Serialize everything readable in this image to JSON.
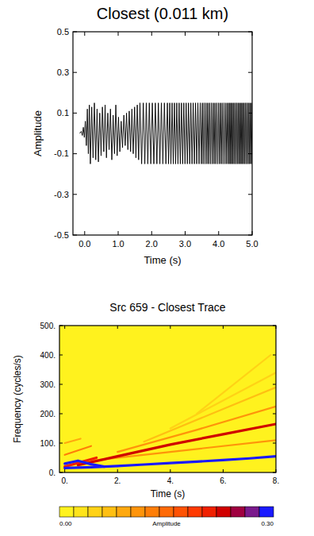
{
  "chart_data": [
    {
      "type": "line",
      "title": "Closest (0.011 km)",
      "x_label": "Time (s)",
      "y_label": "Amplitude",
      "color": "#000000",
      "xlim": [
        -0.35,
        5.0
      ],
      "ylim": [
        -0.5,
        0.5
      ],
      "xticks": [
        {
          "value": 0,
          "label": "0.0"
        },
        {
          "value": 1,
          "label": "1.0"
        },
        {
          "value": 2,
          "label": "2.0"
        },
        {
          "value": 3,
          "label": "3.0"
        },
        {
          "value": 4,
          "label": "4.0"
        },
        {
          "value": 5,
          "label": "5.0"
        }
      ],
      "yticks": [
        -0.5,
        -0.3,
        -0.1,
        0.1,
        0.3,
        0.5
      ],
      "x": [
        -0.15,
        -0.1,
        -0.07,
        -0.04,
        -0.01,
        0.02,
        0.05,
        0.08,
        0.11,
        0.14,
        0.17,
        0.21,
        0.25,
        0.29,
        0.33,
        0.37,
        0.41,
        0.45,
        0.49,
        0.53,
        0.57,
        0.61,
        0.65,
        0.69,
        0.73,
        0.77,
        0.81,
        0.85,
        0.89,
        0.93,
        0.97,
        1.01,
        1.05,
        1.09,
        1.13,
        1.17,
        1.21,
        1.25,
        1.29,
        1.33,
        1.37,
        1.41,
        1.45,
        1.49,
        1.53,
        1.57,
        1.61,
        1.65,
        1.7,
        1.75,
        1.795,
        1.84,
        1.885,
        1.93,
        1.975,
        2.02,
        2.065,
        2.11,
        2.155,
        2.2,
        2.245,
        2.29,
        2.335,
        2.38,
        2.425,
        2.47,
        2.505,
        2.54,
        2.575,
        2.61,
        2.645,
        2.68,
        2.715,
        2.75,
        2.785,
        2.82,
        2.855,
        2.89,
        2.925,
        2.96,
        2.995,
        3.03,
        3.065,
        3.1,
        3.135,
        3.17,
        3.205,
        3.24,
        3.275,
        3.31,
        3.345,
        3.38,
        3.415,
        3.45,
        3.485,
        3.512,
        3.539,
        3.566,
        3.593,
        3.62,
        3.647,
        3.674,
        3.701,
        3.728,
        3.755,
        3.782,
        3.809,
        3.836,
        3.863,
        3.89,
        3.917,
        3.944,
        3.971,
        3.998,
        4.025,
        4.052,
        4.079,
        4.106,
        4.133,
        4.16,
        4.187,
        4.214,
        4.241,
        4.268,
        4.295,
        4.317,
        4.339,
        4.361,
        4.383,
        4.405,
        4.427,
        4.449,
        4.471,
        4.493,
        4.515,
        4.537,
        4.559,
        4.581,
        4.603,
        4.625,
        4.647,
        4.669,
        4.691,
        4.713,
        4.735,
        4.757,
        4.779,
        4.801,
        4.823,
        4.845,
        4.867,
        4.889,
        4.911,
        4.933,
        4.955,
        4.977,
        4.999
      ],
      "values": [
        0.0,
        0.01,
        -0.01,
        0.03,
        -0.02,
        0.06,
        -0.06,
        0.12,
        -0.1,
        0.14,
        -0.15,
        0.13,
        -0.12,
        0.15,
        -0.13,
        0.12,
        -0.14,
        0.1,
        -0.11,
        0.13,
        -0.09,
        0.14,
        -0.12,
        0.1,
        -0.08,
        0.12,
        -0.13,
        0.09,
        -0.1,
        0.14,
        -0.11,
        0.08,
        -0.09,
        0.06,
        -0.07,
        0.09,
        -0.06,
        0.1,
        -0.08,
        0.11,
        -0.09,
        0.12,
        -0.1,
        0.13,
        -0.12,
        0.14,
        -0.13,
        0.15,
        -0.15,
        0.15,
        -0.15,
        0.15,
        -0.15,
        0.15,
        -0.15,
        0.15,
        -0.15,
        0.15,
        -0.15,
        0.15,
        -0.15,
        0.15,
        -0.15,
        0.15,
        -0.15,
        0.15,
        -0.15,
        0.15,
        -0.15,
        0.15,
        -0.15,
        0.15,
        -0.15,
        0.15,
        -0.15,
        0.15,
        -0.15,
        0.15,
        -0.15,
        0.15,
        -0.15,
        0.15,
        -0.15,
        0.15,
        -0.15,
        0.15,
        -0.15,
        0.15,
        -0.15,
        0.15,
        -0.15,
        0.15,
        -0.15,
        0.15,
        -0.15,
        0.15,
        -0.15,
        0.15,
        -0.15,
        0.15,
        -0.15,
        0.15,
        -0.15,
        0.15,
        -0.15,
        0.15,
        -0.15,
        0.15,
        -0.15,
        0.15,
        -0.15,
        0.15,
        -0.15,
        0.15,
        -0.15,
        0.15,
        -0.15,
        0.15,
        -0.15,
        0.15,
        -0.15,
        0.15,
        -0.15,
        0.15,
        -0.15,
        0.15,
        -0.15,
        0.15,
        -0.15,
        0.15,
        -0.15,
        0.15,
        -0.15,
        0.15,
        -0.15,
        0.15,
        -0.15,
        0.15,
        -0.15,
        0.15,
        -0.15,
        0.15,
        -0.15,
        0.15,
        -0.15,
        0.15,
        -0.15,
        0.15,
        -0.15,
        0.15,
        -0.15,
        0.15,
        -0.15,
        0.15,
        -0.15,
        0.15,
        -0.15
      ]
    },
    {
      "type": "spectrogram",
      "title": "Src 659 - Closest Trace",
      "x_label": "Time (s)",
      "y_label": "Frequency (cycles/s)",
      "xlim": [
        -0.2,
        8.0
      ],
      "ylim": [
        0,
        500
      ],
      "xticks": [
        {
          "value": 0,
          "label": "0."
        },
        {
          "value": 2,
          "label": "2."
        },
        {
          "value": 4,
          "label": "4."
        },
        {
          "value": 6,
          "label": "6."
        },
        {
          "value": 8,
          "label": "8."
        }
      ],
      "yticks": [
        {
          "value": 0,
          "label": "0."
        },
        {
          "value": 100,
          "label": "100."
        },
        {
          "value": 200,
          "label": "200."
        },
        {
          "value": 300,
          "label": "300."
        },
        {
          "value": 400,
          "label": "400."
        },
        {
          "value": 500,
          "label": "500."
        }
      ],
      "ridges": [
        {
          "x": [
            0,
            1,
            2,
            3,
            4,
            5,
            6,
            7,
            8
          ],
          "y": [
            15,
            18,
            22,
            27,
            32,
            37,
            42,
            48,
            55
          ],
          "amplitude": 0.3
        },
        {
          "x": [
            0.5,
            2,
            4,
            6,
            8
          ],
          "y": [
            25,
            55,
            95,
            130,
            165
          ],
          "amplitude": 0.22
        },
        {
          "x": [
            1,
            4,
            8
          ],
          "y": [
            40,
            70,
            110
          ],
          "amplitude": 0.1
        },
        {
          "x": [
            2,
            5,
            8
          ],
          "y": [
            70,
            145,
            225
          ],
          "amplitude": 0.1
        },
        {
          "x": [
            3,
            8
          ],
          "y": [
            105,
            290
          ],
          "amplitude": 0.06
        },
        {
          "x": [
            4,
            8
          ],
          "y": [
            150,
            340
          ],
          "amplitude": 0.05
        },
        {
          "x": [
            5,
            7.8
          ],
          "y": [
            200,
            400
          ],
          "amplitude": 0.04
        },
        {
          "x": [
            0,
            0.5,
            1,
            1.5
          ],
          "y": [
            30,
            40,
            28,
            20
          ],
          "amplitude": 0.28
        },
        {
          "x": [
            0,
            0.6,
            1.2
          ],
          "y": [
            20,
            35,
            50
          ],
          "amplitude": 0.2
        },
        {
          "x": [
            0,
            0.5,
            1
          ],
          "y": [
            60,
            75,
            90
          ],
          "amplitude": 0.12
        },
        {
          "x": [
            0,
            0.6
          ],
          "y": [
            100,
            115
          ],
          "amplitude": 0.08
        }
      ],
      "colorbar": {
        "label": "Amplitude",
        "range": [
          0,
          0.3
        ],
        "ticks": [
          {
            "value": 0,
            "label": "0.00"
          },
          {
            "value": 0.3,
            "label": "0.30"
          }
        ],
        "colors": [
          "#fff21e",
          "#ffe41a",
          "#ffd216",
          "#ffbf12",
          "#ffa80e",
          "#ff940a",
          "#ff7e08",
          "#ff6a06",
          "#ff5204",
          "#ff3a02",
          "#f02000",
          "#d00000",
          "#a00040",
          "#7a1a8c",
          "#1a1aff"
        ]
      }
    }
  ]
}
